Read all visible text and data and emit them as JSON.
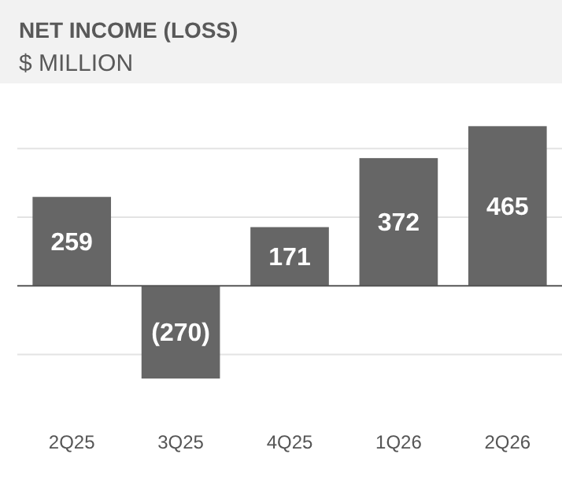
{
  "chart_data": {
    "type": "bar",
    "title": "NET INCOME (LOSS)",
    "subtitle": "$ MILLION",
    "categories": [
      "2Q25",
      "3Q25",
      "4Q25",
      "1Q26",
      "2Q26"
    ],
    "values": [
      259,
      -270,
      171,
      372,
      465
    ],
    "value_labels": [
      "259",
      "(270)",
      "171",
      "372",
      "465"
    ],
    "color": "#666666",
    "yticks": [
      {
        "value": -200,
        "label": null
      },
      {
        "value": 0,
        "label": null
      },
      {
        "value": 200,
        "label": null
      },
      {
        "value": 400,
        "label": null
      }
    ],
    "grid": "y",
    "tick_labels": "x"
  }
}
